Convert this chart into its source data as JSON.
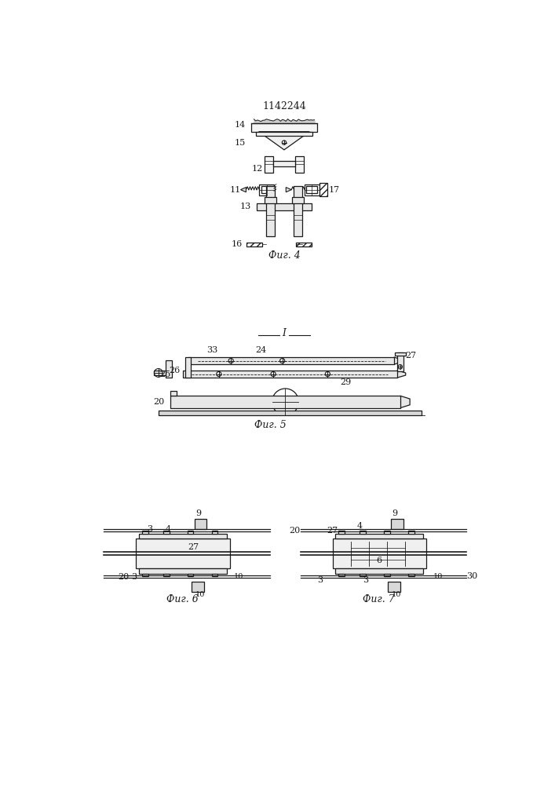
{
  "title": "1142244",
  "bg_color": "#ffffff",
  "lc": "#1a1a1a",
  "fig4_caption": "Фиг. 4",
  "fig5_caption": "Фиг. 5",
  "fig6_caption": "Фиг. 6",
  "fig7_caption": "Фиг. 7"
}
